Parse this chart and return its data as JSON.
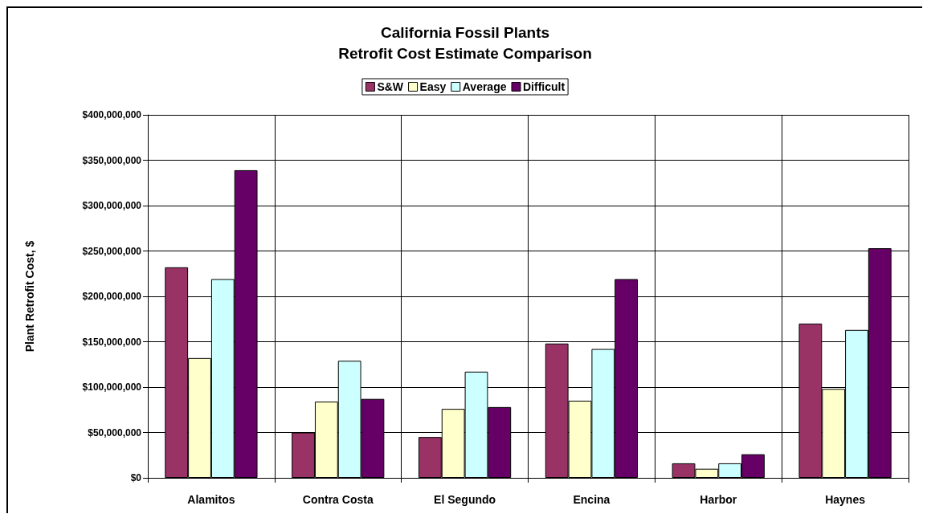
{
  "chart_data": {
    "type": "bar",
    "title": "California Fossil Plants\nRetrofit Cost Estimate Comparison",
    "ylabel": "Plant Retrofit Cost, $",
    "categories": [
      "Alamitos",
      "Contra Costa",
      "El Segundo",
      "Encina",
      "Harbor",
      "Haynes"
    ],
    "series": [
      {
        "name": "S&W",
        "color": "#993366",
        "values": [
          232000000,
          50000000,
          45000000,
          148000000,
          16000000,
          170000000
        ]
      },
      {
        "name": "Easy",
        "color": "#ffffcc",
        "values": [
          132000000,
          84000000,
          76000000,
          85000000,
          10000000,
          98000000
        ]
      },
      {
        "name": "Average",
        "color": "#ccffff",
        "values": [
          219000000,
          129000000,
          117000000,
          142000000,
          16000000,
          163000000
        ]
      },
      {
        "name": "Difficult",
        "color": "#660066",
        "values": [
          339000000,
          87000000,
          78000000,
          219000000,
          26000000,
          253000000
        ]
      }
    ],
    "ylim": [
      0,
      400000000
    ],
    "yticks": [
      {
        "value": 0,
        "label": "$0"
      },
      {
        "value": 50000000,
        "label": "$50,000,000"
      },
      {
        "value": 100000000,
        "label": "$100,000,000"
      },
      {
        "value": 150000000,
        "label": "$150,000,000"
      },
      {
        "value": 200000000,
        "label": "$200,000,000"
      },
      {
        "value": 250000000,
        "label": "$250,000,000"
      },
      {
        "value": 300000000,
        "label": "$300,000,000"
      },
      {
        "value": 350000000,
        "label": "$350,000,000"
      },
      {
        "value": 400000000,
        "label": "$400,000,000"
      }
    ],
    "grid": true,
    "legend": "top"
  }
}
